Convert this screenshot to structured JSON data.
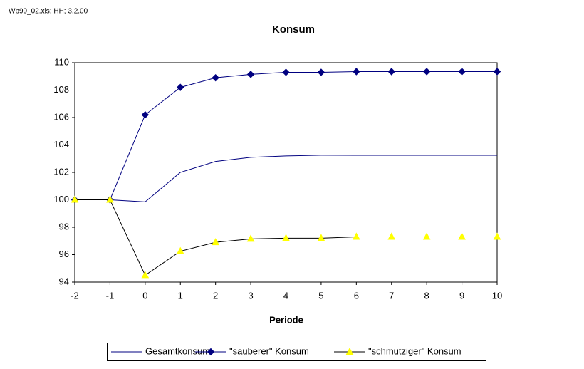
{
  "chart_data": {
    "type": "line",
    "source_note": "Wp99_02.xls: HH; 3.2.00",
    "title": "Konsum",
    "x_label": "Periode",
    "x": [
      -2,
      -1,
      0,
      1,
      2,
      3,
      4,
      5,
      6,
      7,
      8,
      9,
      10
    ],
    "xlim": [
      -2,
      10
    ],
    "xticks": [
      -2,
      -1,
      0,
      1,
      2,
      3,
      4,
      5,
      6,
      7,
      8,
      9,
      10
    ],
    "ylim": [
      94,
      110
    ],
    "yticks": [
      94,
      96,
      98,
      100,
      102,
      104,
      106,
      108,
      110
    ],
    "grid": false,
    "legend": "bottom",
    "series": [
      {
        "name": "Gesamtkonsum",
        "color": "#000080",
        "values": [
          100,
          100,
          99.85,
          102,
          102.8,
          103.1,
          103.2,
          103.25,
          103.25,
          103.25,
          103.25,
          103.25,
          103.25
        ]
      },
      {
        "name": "\"sauberer\" Konsum",
        "color": "#000080",
        "marker": "diamond",
        "marker_color": "#000080",
        "values": [
          100,
          100,
          106.2,
          108.2,
          108.9,
          109.15,
          109.3,
          109.3,
          109.35,
          109.35,
          109.35,
          109.35,
          109.35
        ]
      },
      {
        "name": "\"schmutziger\" Konsum",
        "color": "#000000",
        "marker": "triangle",
        "marker_color": "#ffff00",
        "values": [
          100,
          100,
          94.5,
          96.25,
          96.9,
          97.15,
          97.2,
          97.2,
          97.3,
          97.3,
          97.3,
          97.3,
          97.3
        ]
      }
    ]
  }
}
